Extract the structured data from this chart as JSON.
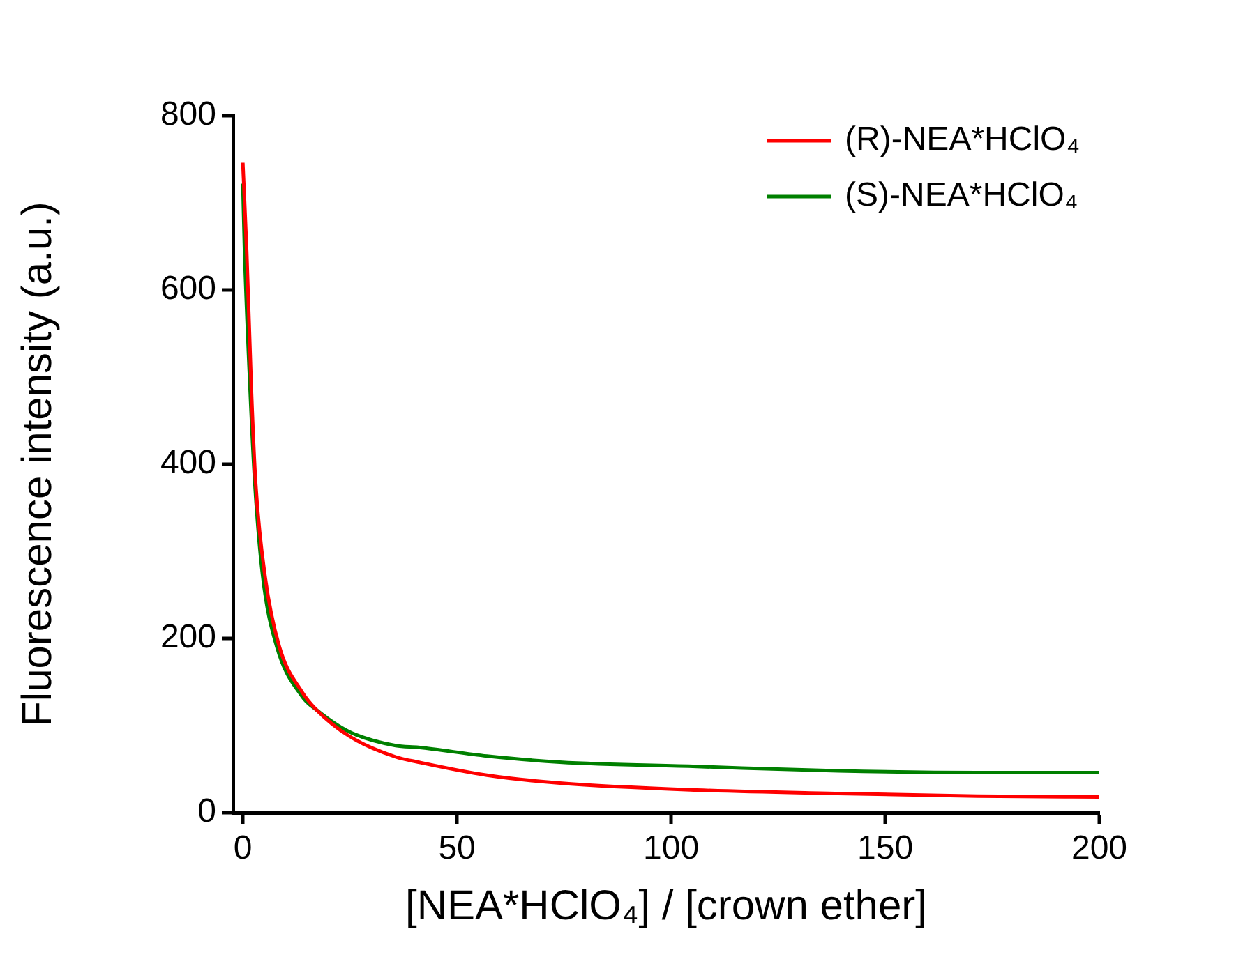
{
  "chart_data": {
    "type": "line",
    "xlabel": "[NEA*HClO₄] / [crown ether]",
    "ylabel": "Fluorescence intensity (a.u.)",
    "xlim": [
      -2.3,
      200
    ],
    "xticks": [
      0,
      50,
      100,
      150,
      200
    ],
    "ylim": [
      0,
      800
    ],
    "yticks": [
      0,
      200,
      400,
      600,
      800
    ],
    "grid": false,
    "legend": "top right",
    "marker": "none",
    "line_style": "solid",
    "series": [
      {
        "name": "(R)-NEA*HClO₄",
        "color": "#ff0000",
        "x": [
          0,
          0.9,
          2,
          3,
          5.2,
          8.5,
          13.9,
          17.2,
          24.8,
          35.7,
          41,
          57,
          74,
          106,
          139,
          171.5,
          200
        ],
        "values": [
          746,
          645,
          485,
          378,
          271,
          191,
          138,
          118,
          88,
          64,
          58,
          43,
          34,
          26,
          22,
          19,
          18
        ]
      },
      {
        "name": "(S)-NEA*HClO₄",
        "color": "#008000",
        "x": [
          0,
          0.4,
          1.7,
          2.8,
          4.65,
          7.9,
          13.9,
          17.2,
          24.8,
          35.7,
          41,
          57,
          74,
          106,
          139,
          171.5,
          200
        ],
        "values": [
          722,
          645,
          485,
          378,
          271,
          191,
          133,
          118,
          93,
          77,
          75,
          65,
          58,
          53,
          48,
          46,
          46
        ]
      }
    ]
  }
}
